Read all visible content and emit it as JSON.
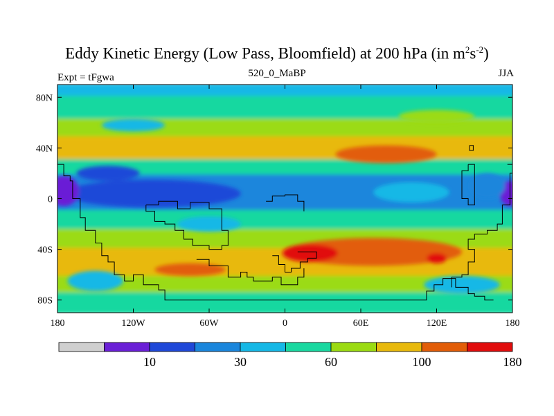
{
  "title": {
    "main": "Eddy Kinetic Energy (Low Pass, Bloomfield) at 200 hPa (in m",
    "sup1": "2",
    "mid": "s",
    "sup2": "-2",
    "end": ")"
  },
  "subtitle": {
    "left": "Expt = tFgwa",
    "center": "520_0_MaBP",
    "right": "JJA"
  },
  "chart_data": {
    "type": "heatmap",
    "title": "Eddy Kinetic Energy (Low Pass, Bloomfield) at 200 hPa (in m2s-2)",
    "x_axis": {
      "range": [
        -180,
        180
      ],
      "ticks": [
        -180,
        -120,
        -60,
        0,
        60,
        120,
        180
      ],
      "tick_labels": [
        "180",
        "120W",
        "60W",
        "0",
        "60E",
        "120E",
        "180"
      ]
    },
    "y_axis": {
      "range": [
        -90,
        90
      ],
      "ticks": [
        80,
        40,
        0,
        -40,
        -80
      ],
      "tick_labels": [
        "80N",
        "40N",
        "0",
        "40S",
        "80S"
      ]
    },
    "colorbar": {
      "colors": [
        "#cfcfcf",
        "#6a1fd6",
        "#1f48d8",
        "#1a86dc",
        "#15b8e6",
        "#19d8a0",
        "#9bdb12",
        "#e8b90c",
        "#e25d08",
        "#e10c0c"
      ],
      "labels": [
        "10",
        "30",
        "60",
        "100",
        "180"
      ],
      "label_after_box": [
        1,
        3,
        5,
        7,
        9
      ]
    },
    "bands": [
      {
        "lat_top": 90,
        "lat_bot": 80,
        "level": 4
      },
      {
        "lat_top": 80,
        "lat_bot": 62,
        "level": 5
      },
      {
        "lat_top": 62,
        "lat_bot": 48,
        "level": 6
      },
      {
        "lat_top": 48,
        "lat_bot": 30,
        "level": 7
      },
      {
        "lat_top": 30,
        "lat_bot": 18,
        "level": 5
      },
      {
        "lat_top": 18,
        "lat_bot": -10,
        "level": 3
      },
      {
        "lat_top": -10,
        "lat_bot": -25,
        "level": 5
      },
      {
        "lat_top": -25,
        "lat_bot": -40,
        "level": 6
      },
      {
        "lat_top": -40,
        "lat_bot": -62,
        "level": 7
      },
      {
        "lat_top": -62,
        "lat_bot": -75,
        "level": 6
      },
      {
        "lat_top": -75,
        "lat_bot": -90,
        "level": 5
      }
    ],
    "blobs": [
      {
        "lon": -105,
        "lat": 4,
        "rlon": 70,
        "rlat": 11,
        "level": 2
      },
      {
        "lon": -175,
        "lat": 6,
        "rlon": 12,
        "rlat": 12,
        "level": 1
      },
      {
        "lon": 178,
        "lat": 4,
        "rlon": 8,
        "rlat": 10,
        "level": 1
      },
      {
        "lon": -140,
        "lat": 20,
        "rlon": 25,
        "rlat": 6,
        "level": 2
      },
      {
        "lon": -60,
        "lat": -20,
        "rlon": 25,
        "rlat": 6,
        "level": 4
      },
      {
        "lon": 80,
        "lat": 35,
        "rlon": 40,
        "rlat": 7,
        "level": 8
      },
      {
        "lon": 70,
        "lat": -42,
        "rlon": 70,
        "rlat": 11,
        "level": 8
      },
      {
        "lon": 20,
        "lat": -43,
        "rlon": 22,
        "rlat": 7,
        "level": 9
      },
      {
        "lon": 120,
        "lat": -47,
        "rlon": 8,
        "rlat": 4,
        "level": 9
      },
      {
        "lon": -150,
        "lat": -65,
        "rlon": 22,
        "rlat": 8,
        "level": 4
      },
      {
        "lon": -75,
        "lat": -56,
        "rlon": 28,
        "rlat": 5,
        "level": 8
      },
      {
        "lon": 140,
        "lat": -68,
        "rlon": 30,
        "rlat": 7,
        "level": 4
      },
      {
        "lon": 160,
        "lat": 10,
        "rlon": 14,
        "rlat": 10,
        "level": 3
      },
      {
        "lon": 100,
        "lat": 5,
        "rlon": 30,
        "rlat": 8,
        "level": 4
      },
      {
        "lon": -120,
        "lat": 58,
        "rlon": 25,
        "rlat": 5,
        "level": 4
      },
      {
        "lon": 120,
        "lat": 65,
        "rlon": 30,
        "rlat": 5,
        "level": 6
      }
    ],
    "coastlines": [
      [
        [
          -180,
          27
        ],
        [
          -175,
          27
        ],
        [
          -175,
          18
        ],
        [
          -170,
          18
        ],
        [
          -170,
          14
        ],
        [
          -168,
          14
        ],
        [
          -168,
          0
        ],
        [
          -162,
          0
        ],
        [
          -162,
          -15
        ],
        [
          -158,
          -15
        ],
        [
          -158,
          -25
        ],
        [
          -150,
          -25
        ],
        [
          -150,
          -35
        ],
        [
          -145,
          -35
        ],
        [
          -145,
          -45
        ],
        [
          -140,
          -45
        ],
        [
          -140,
          -50
        ],
        [
          -135,
          -50
        ],
        [
          -135,
          -60
        ],
        [
          -127,
          -60
        ],
        [
          -127,
          -65
        ],
        [
          -120,
          -65
        ],
        [
          -120,
          -60
        ],
        [
          -112,
          -60
        ],
        [
          -112,
          -68
        ],
        [
          -100,
          -68
        ],
        [
          -100,
          -72
        ],
        [
          -95,
          -72
        ],
        [
          -95,
          -80
        ],
        [
          -65,
          -80
        ],
        [
          -45,
          -80
        ],
        [
          0,
          -80
        ],
        [
          30,
          -80
        ],
        [
          60,
          -80
        ],
        [
          100,
          -80
        ],
        [
          112,
          -80
        ],
        [
          112,
          -73
        ],
        [
          118,
          -73
        ],
        [
          118,
          -68
        ],
        [
          125,
          -68
        ],
        [
          125,
          -63
        ],
        [
          135,
          -63
        ],
        [
          135,
          -70
        ],
        [
          145,
          -70
        ],
        [
          145,
          -75
        ],
        [
          150,
          -75
        ],
        [
          150,
          -77
        ],
        [
          158,
          -77
        ],
        [
          158,
          -80
        ],
        [
          165,
          -80
        ]
      ],
      [
        [
          -110,
          -5
        ],
        [
          -110,
          -10
        ],
        [
          -103,
          -10
        ],
        [
          -103,
          -18
        ],
        [
          -95,
          -18
        ],
        [
          -95,
          -20
        ],
        [
          -87,
          -20
        ],
        [
          -87,
          -25
        ],
        [
          -80,
          -25
        ],
        [
          -80,
          -32
        ],
        [
          -73,
          -32
        ],
        [
          -73,
          -37
        ],
        [
          -60,
          -37
        ],
        [
          -60,
          -40
        ],
        [
          -50,
          -40
        ],
        [
          -50,
          -37
        ],
        [
          -45,
          -37
        ],
        [
          -45,
          -25
        ],
        [
          -50,
          -25
        ],
        [
          -50,
          -8
        ],
        [
          -60,
          -8
        ],
        [
          -60,
          -3
        ],
        [
          -75,
          -3
        ],
        [
          -75,
          -8
        ],
        [
          -85,
          -8
        ],
        [
          -85,
          -2
        ],
        [
          -100,
          -2
        ],
        [
          -100,
          -5
        ],
        [
          -110,
          -5
        ]
      ],
      [
        [
          -15,
          -2
        ],
        [
          -10,
          -2
        ],
        [
          -10,
          2
        ],
        [
          0,
          2
        ],
        [
          0,
          3
        ],
        [
          10,
          3
        ],
        [
          10,
          -2
        ],
        [
          15,
          -2
        ],
        [
          15,
          -10
        ]
      ],
      [
        [
          -10,
          -45
        ],
        [
          -5,
          -45
        ],
        [
          -5,
          -52
        ],
        [
          0,
          -52
        ],
        [
          0,
          -58
        ],
        [
          5,
          -58
        ],
        [
          5,
          -55
        ],
        [
          12,
          -55
        ],
        [
          12,
          -50
        ],
        [
          18,
          -50
        ],
        [
          18,
          -47
        ],
        [
          25,
          -47
        ],
        [
          25,
          -42
        ],
        [
          18,
          -42
        ],
        [
          10,
          -42
        ]
      ],
      [
        [
          -70,
          -48
        ],
        [
          -60,
          -48
        ],
        [
          -60,
          -53
        ],
        [
          -45,
          -53
        ],
        [
          -45,
          -62
        ],
        [
          -35,
          -62
        ],
        [
          -35,
          -58
        ],
        [
          -30,
          -58
        ],
        [
          -30,
          -62
        ],
        [
          -25,
          -62
        ],
        [
          -25,
          -65
        ],
        [
          -10,
          -65
        ],
        [
          -10,
          -62
        ],
        [
          -3,
          -62
        ],
        [
          -3,
          -68
        ],
        [
          10,
          -68
        ],
        [
          10,
          -62
        ],
        [
          15,
          -62
        ],
        [
          15,
          -55
        ]
      ],
      [
        [
          145,
          27
        ],
        [
          150,
          27
        ],
        [
          150,
          -5
        ],
        [
          145,
          -5
        ],
        [
          145,
          0
        ],
        [
          140,
          0
        ],
        [
          140,
          22
        ],
        [
          145,
          22
        ],
        [
          145,
          27
        ]
      ],
      [
        [
          176,
          27
        ],
        [
          180,
          27
        ],
        [
          180,
          20
        ],
        [
          178,
          20
        ],
        [
          178,
          -5
        ],
        [
          172,
          -5
        ],
        [
          172,
          -20
        ],
        [
          168,
          -20
        ],
        [
          168,
          -25
        ],
        [
          160,
          -25
        ],
        [
          160,
          -28
        ],
        [
          150,
          -28
        ],
        [
          150,
          -32
        ],
        [
          145,
          -32
        ],
        [
          145,
          -40
        ],
        [
          150,
          -40
        ],
        [
          150,
          -50
        ],
        [
          145,
          -50
        ],
        [
          145,
          -60
        ],
        [
          140,
          -60
        ],
        [
          140,
          -62
        ],
        [
          132,
          -62
        ],
        [
          132,
          -70
        ]
      ],
      [
        [
          146,
          42
        ],
        [
          149,
          42
        ],
        [
          149,
          38
        ],
        [
          146,
          38
        ],
        [
          146,
          42
        ]
      ]
    ]
  }
}
